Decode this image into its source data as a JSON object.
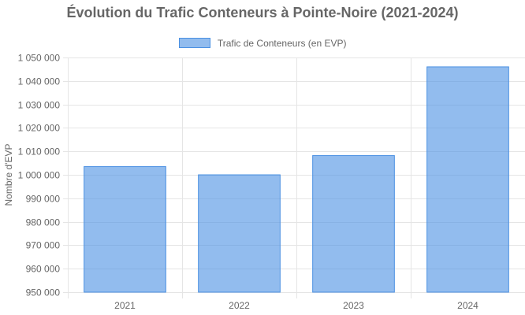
{
  "chart_data": {
    "type": "bar",
    "title": "Évolution du Trafic Conteneurs à Pointe-Noire (2021-2024)",
    "xlabel": "",
    "ylabel": "Nombre d'EVP",
    "categories": [
      "2021",
      "2022",
      "2023",
      "2024"
    ],
    "series": [
      {
        "name": "Trafic de Conteneurs (en EVP)",
        "values": [
          1003500,
          1000000,
          1008200,
          1046000
        ]
      }
    ],
    "ylim": [
      950000,
      1050000
    ],
    "yticks": [
      950000,
      960000,
      970000,
      980000,
      990000,
      1000000,
      1010000,
      1020000,
      1030000,
      1040000,
      1050000
    ],
    "ytick_labels": [
      "950 000",
      "960 000",
      "970 000",
      "980 000",
      "990 000",
      "1 000 000",
      "1 010 000",
      "1 020 000",
      "1 030 000",
      "1 040 000",
      "1 050 000"
    ],
    "grid": true,
    "legend_position": "top-center",
    "colors": {
      "bar_fill": "rgba(74, 144, 226, 0.6)",
      "bar_border": "#4a90e2",
      "grid": "#e5e5e5",
      "text": "#666666"
    }
  }
}
